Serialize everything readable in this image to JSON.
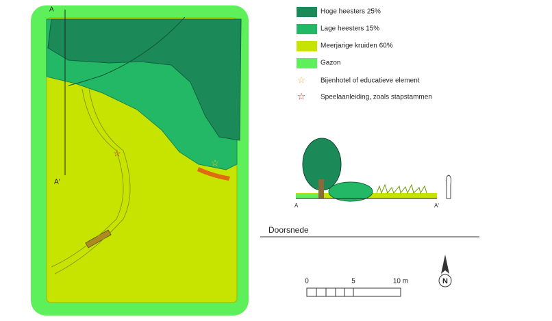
{
  "map": {
    "section_labels": {
      "start": "A",
      "end": "A'"
    }
  },
  "legend": {
    "items": [
      {
        "label": "Hoge heesters 25%"
      },
      {
        "label": "Lage heesters 15%"
      },
      {
        "label": "Meerjarige kruiden 60%"
      },
      {
        "label": "Gazon"
      },
      {
        "label": "Bijenhotel of educatieve element"
      },
      {
        "label": "Speelaanleiding, zoals stapstammen"
      }
    ]
  },
  "section": {
    "title": "Doorsnede",
    "start": "A",
    "end": "A'"
  },
  "scale_bar": {
    "labels": [
      "0",
      "5",
      "10 m"
    ]
  },
  "north": "N"
}
